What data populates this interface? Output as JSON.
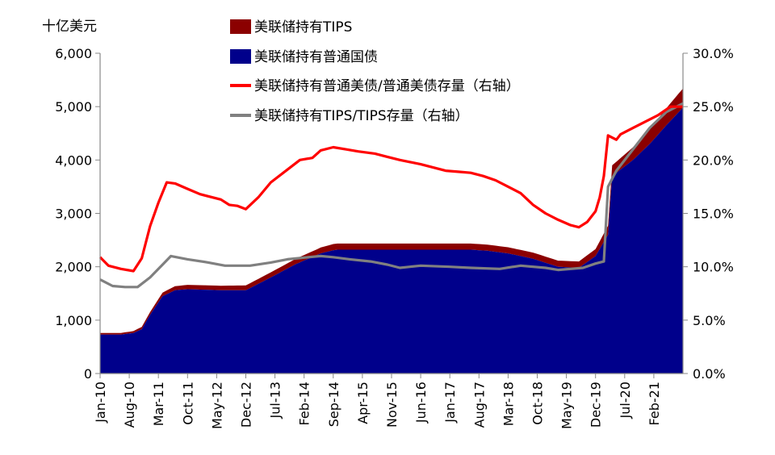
{
  "chart_data": {
    "type": "area",
    "y_left_label": "十亿美元",
    "y_left_ticks": [
      "0",
      "1,000",
      "2,000",
      "3,000",
      "4,000",
      "5,000",
      "6,000"
    ],
    "y_right_ticks": [
      "0.0%",
      "5.0%",
      "10.0%",
      "15.0%",
      "20.0%",
      "25.0%",
      "30.0%"
    ],
    "ylim_left": [
      0,
      6000
    ],
    "ylim_right": [
      0,
      30
    ],
    "x_ticks": [
      "Jan-10",
      "Aug-10",
      "Mar-11",
      "Oct-11",
      "May-12",
      "Dec-12",
      "Jul-13",
      "Feb-14",
      "Sep-14",
      "Apr-15",
      "Nov-15",
      "Jun-16",
      "Jan-17",
      "Aug-17",
      "Mar-18",
      "Oct-18",
      "May-19",
      "Dec-19",
      "Jul-20",
      "Feb-21"
    ],
    "x_range": [
      "2010-01",
      "2021-09"
    ],
    "series": [
      {
        "name": "美联储持有TIPS",
        "kind": "area",
        "axis": "left",
        "color": "#8b0000",
        "note_stacked_on": "美联储持有普通国债",
        "x": [
          "2010-01",
          "2010-06",
          "2010-09",
          "2011-01",
          "2011-05",
          "2011-09",
          "2012-06",
          "2012-12",
          "2013-06",
          "2013-12",
          "2014-06",
          "2014-09",
          "2015-06",
          "2016-06",
          "2017-06",
          "2017-10",
          "2018-03",
          "2018-09",
          "2019-03",
          "2019-08",
          "2019-12",
          "2020-03",
          "2020-04",
          "2020-09",
          "2021-01",
          "2021-05",
          "2021-09"
        ],
        "values": [
          30,
          30,
          35,
          50,
          70,
          80,
          85,
          90,
          95,
          100,
          110,
          115,
          115,
          115,
          115,
          115,
          115,
          115,
          115,
          120,
          130,
          170,
          200,
          240,
          280,
          320,
          360
        ]
      },
      {
        "name": "美联储持有普通国债",
        "kind": "area",
        "axis": "left",
        "color": "#00008b",
        "x": [
          "2010-01",
          "2010-06",
          "2010-09",
          "2010-11",
          "2011-01",
          "2011-04",
          "2011-07",
          "2011-10",
          "2012-06",
          "2012-12",
          "2013-06",
          "2013-12",
          "2014-06",
          "2014-09",
          "2014-10",
          "2015-06",
          "2016-06",
          "2017-06",
          "2017-10",
          "2018-03",
          "2018-09",
          "2019-03",
          "2019-08",
          "2019-12",
          "2020-03",
          "2020-04",
          "2020-09",
          "2021-01",
          "2021-05",
          "2021-09"
        ],
        "values": [
          730,
          730,
          760,
          830,
          1100,
          1450,
          1560,
          1580,
          1560,
          1560,
          1800,
          2050,
          2250,
          2310,
          2320,
          2320,
          2320,
          2320,
          2300,
          2250,
          2150,
          2000,
          1980,
          2200,
          2600,
          3700,
          4000,
          4300,
          4650,
          4980
        ]
      },
      {
        "name": "美联储持有普通美债/普通美债存量（右轴）",
        "kind": "line",
        "axis": "right",
        "color": "#ff0000",
        "x": [
          "2010-01",
          "2010-03",
          "2010-06",
          "2010-09",
          "2010-11",
          "2011-01",
          "2011-03",
          "2011-05",
          "2011-07",
          "2011-10",
          "2012-01",
          "2012-06",
          "2012-08",
          "2012-10",
          "2012-12",
          "2013-03",
          "2013-06",
          "2013-10",
          "2014-01",
          "2014-04",
          "2014-06",
          "2014-09",
          "2014-12",
          "2015-03",
          "2015-07",
          "2015-10",
          "2016-01",
          "2016-06",
          "2016-12",
          "2017-03",
          "2017-06",
          "2017-09",
          "2017-12",
          "2018-03",
          "2018-06",
          "2018-09",
          "2018-12",
          "2019-03",
          "2019-06",
          "2019-08",
          "2019-10",
          "2019-12",
          "2020-01",
          "2020-02",
          "2020-03",
          "2020-05",
          "2020-06",
          "2020-09",
          "2020-12",
          "2021-03",
          "2021-06",
          "2021-09"
        ],
        "values": [
          10.9,
          10.1,
          9.8,
          9.6,
          10.8,
          13.8,
          16.0,
          17.9,
          17.8,
          17.3,
          16.8,
          16.3,
          15.8,
          15.7,
          15.4,
          16.5,
          17.9,
          19.1,
          20.0,
          20.2,
          20.9,
          21.2,
          21.0,
          20.8,
          20.6,
          20.3,
          20.0,
          19.6,
          19.0,
          18.9,
          18.8,
          18.5,
          18.1,
          17.5,
          16.9,
          15.8,
          15.0,
          14.4,
          13.9,
          13.7,
          14.2,
          15.2,
          16.5,
          18.5,
          22.3,
          21.9,
          22.4,
          23.0,
          23.6,
          24.2,
          25.0,
          25.0
        ]
      },
      {
        "name": "美联储持有TIPS/TIPS存量（右轴）",
        "kind": "line",
        "axis": "right",
        "color": "#808080",
        "x": [
          "2010-01",
          "2010-04",
          "2010-07",
          "2010-10",
          "2011-01",
          "2011-04",
          "2011-06",
          "2011-10",
          "2012-03",
          "2012-07",
          "2012-10",
          "2013-01",
          "2013-06",
          "2013-10",
          "2014-03",
          "2014-06",
          "2014-09",
          "2015-01",
          "2015-06",
          "2015-10",
          "2016-01",
          "2016-06",
          "2017-01",
          "2017-06",
          "2018-01",
          "2018-06",
          "2018-12",
          "2019-03",
          "2019-06",
          "2019-09",
          "2019-12",
          "2020-02",
          "2020-03",
          "2020-05",
          "2020-09",
          "2021-01",
          "2021-05",
          "2021-09"
        ],
        "values": [
          8.8,
          8.2,
          8.1,
          8.1,
          9.0,
          10.2,
          11.0,
          10.7,
          10.4,
          10.1,
          10.1,
          10.1,
          10.4,
          10.7,
          10.9,
          11.0,
          10.9,
          10.7,
          10.5,
          10.2,
          9.9,
          10.1,
          10.0,
          9.9,
          9.8,
          10.1,
          9.9,
          9.7,
          9.8,
          9.9,
          10.3,
          10.5,
          17.5,
          19.0,
          21.0,
          23.0,
          24.5,
          25.3
        ]
      }
    ]
  }
}
